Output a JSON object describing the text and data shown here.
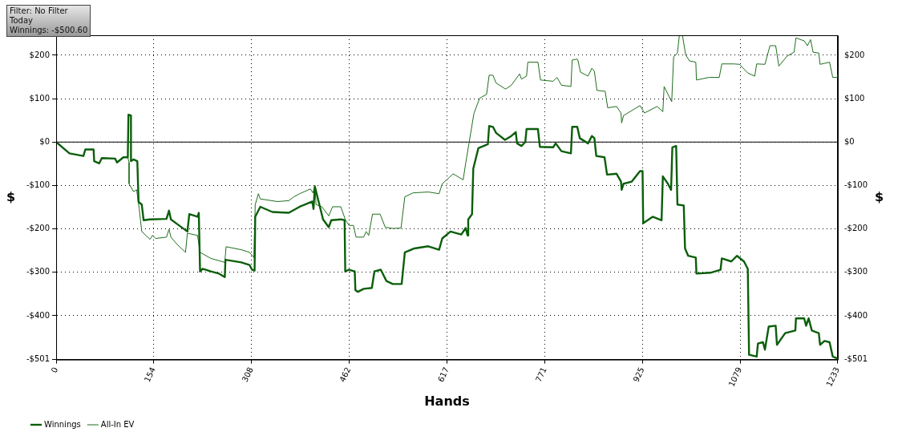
{
  "chart_data": {
    "type": "line",
    "xlabel": "Hands",
    "ylabel": "$",
    "y2label": "$",
    "annotations": [
      "Filter: No Filter",
      "Today",
      "Winnings: -$500.60"
    ],
    "xlim": [
      0,
      1233
    ],
    "xticks": [
      0,
      154,
      308,
      462,
      617,
      771,
      925,
      1079,
      1233
    ],
    "ylim": [
      -501,
      246
    ],
    "yticks": [
      {
        "value": -501,
        "label": "-$501"
      },
      {
        "value": -400,
        "label": "-$400"
      },
      {
        "value": -300,
        "label": "-$300"
      },
      {
        "value": -200,
        "label": "-$200"
      },
      {
        "value": -100,
        "label": "-$100"
      },
      {
        "value": 0,
        "label": "$0"
      },
      {
        "value": 100,
        "label": "$100"
      },
      {
        "value": 200,
        "label": "$200"
      }
    ],
    "y2lim": [
      -501,
      246
    ],
    "y2ticks": [
      {
        "value": -501,
        "label": "-$501"
      },
      {
        "value": -400,
        "label": "-$400"
      },
      {
        "value": -300,
        "label": "-$300"
      },
      {
        "value": -200,
        "label": "-$200"
      },
      {
        "value": -100,
        "label": "-$100"
      },
      {
        "value": 0,
        "label": "$0"
      },
      {
        "value": 100,
        "label": "$100"
      },
      {
        "value": 200,
        "label": "$200"
      }
    ],
    "grid": true,
    "legend": "bottom left",
    "marker": "none",
    "line_style": "solid",
    "ref_lines": [
      {
        "axis": "y",
        "value": 0,
        "color": "#000000"
      }
    ],
    "series": [
      {
        "name": "Winnings",
        "color": "#0b5e0b",
        "x": [
          0,
          21,
          43,
          46,
          59,
          60,
          68,
          72,
          93,
          96,
          106,
          113,
          114,
          118,
          118,
          122,
          128,
          130,
          135,
          138,
          148,
          174,
          178,
          181,
          191,
          207,
          210,
          223,
          225,
          227,
          231,
          244,
          257,
          266,
          267,
          292,
          305,
          309,
          313,
          314,
          322,
          341,
          367,
          384,
          404,
          406,
          408,
          421,
          430,
          434,
          449,
          455,
          456,
          462,
          471,
          472,
          476,
          485,
          498,
          502,
          512,
          521,
          531,
          545,
          550,
          565,
          587,
          604,
          609,
          622,
          639,
          646,
          649,
          650,
          656,
          658,
          666,
          681,
          683,
          689,
          694,
          708,
          718,
          725,
          727,
          734,
          740,
          742,
          760,
          763,
          784,
          788,
          797,
          812,
          814,
          822,
          826,
          839,
          845,
          849,
          852,
          865,
          869,
          884,
          891,
          892,
          895,
          908,
          921,
          925,
          926,
          941,
          955,
          957,
          965,
          970,
          972,
          978,
          980,
          990,
          992,
          997,
          1009,
          1010,
          1032,
          1048,
          1050,
          1065,
          1074,
          1085,
          1091,
          1093,
          1105,
          1107,
          1115,
          1118,
          1124,
          1135,
          1137,
          1150,
          1166,
          1167,
          1180,
          1183,
          1187,
          1192,
          1203,
          1205,
          1212,
          1220,
          1225,
          1232,
          1233
        ],
        "values": [
          0,
          -26,
          -32,
          -17,
          -17,
          -44,
          -49,
          -37,
          -38,
          -47,
          -35,
          -35,
          63,
          61,
          -44,
          -40,
          -44,
          -138,
          -144,
          -180,
          -178,
          -177,
          -158,
          -178,
          -189,
          -206,
          -166,
          -172,
          -163,
          -298,
          -292,
          -298,
          -303,
          -311,
          -271,
          -277,
          -283,
          -294,
          -296,
          -172,
          -149,
          -161,
          -163,
          -149,
          -137,
          -154,
          -102,
          -178,
          -196,
          -180,
          -178,
          -180,
          -298,
          -294,
          -298,
          -341,
          -345,
          -338,
          -336,
          -298,
          -294,
          -320,
          -327,
          -327,
          -254,
          -245,
          -240,
          -248,
          -222,
          -206,
          -213,
          -198,
          -215,
          -178,
          -166,
          -61,
          -14,
          -5,
          37,
          35,
          21,
          5,
          14,
          23,
          -3,
          -9,
          0,
          30,
          30,
          -11,
          -12,
          -3,
          -21,
          -26,
          35,
          35,
          9,
          -3,
          14,
          9,
          -32,
          -35,
          -75,
          -73,
          -91,
          -110,
          -96,
          -91,
          -67,
          -67,
          -187,
          -172,
          -180,
          -79,
          -96,
          -110,
          -12,
          -9,
          -144,
          -146,
          -245,
          -262,
          -266,
          -303,
          -301,
          -294,
          -268,
          -275,
          -262,
          -275,
          -292,
          -490,
          -494,
          -464,
          -461,
          -478,
          -425,
          -423,
          -467,
          -440,
          -434,
          -406,
          -406,
          -423,
          -406,
          -434,
          -440,
          -467,
          -458,
          -461,
          -494,
          -498,
          -501
        ]
      },
      {
        "name": "All-In EV",
        "color": "#1f6e1f",
        "x": [
          0,
          21,
          43,
          46,
          59,
          60,
          68,
          72,
          93,
          96,
          106,
          113,
          115,
          115,
          122,
          127,
          131,
          135,
          148,
          152,
          157,
          174,
          178,
          181,
          191,
          204,
          207,
          223,
          227,
          244,
          266,
          268,
          292,
          305,
          312,
          314,
          319,
          322,
          349,
          367,
          375,
          384,
          401,
          405,
          408,
          410,
          419,
          430,
          436,
          449,
          456,
          462,
          469,
          473,
          485,
          489,
          493,
          499,
          511,
          519,
          531,
          544,
          550,
          563,
          587,
          604,
          609,
          620,
          626,
          642,
          646,
          659,
          668,
          679,
          683,
          689,
          694,
          709,
          718,
          731,
          734,
          742,
          744,
          760,
          764,
          784,
          790,
          797,
          812,
          814,
          822,
          823,
          827,
          839,
          845,
          849,
          853,
          866,
          870,
          884,
          891,
          892,
          895,
          921,
          928,
          948,
          957,
          959,
          971,
          974,
          980,
          983,
          988,
          993,
          999,
          1009,
          1010,
          1030,
          1046,
          1050,
          1069,
          1078,
          1091,
          1102,
          1105,
          1118,
          1126,
          1135,
          1140,
          1153,
          1164,
          1167,
          1180,
          1185,
          1190,
          1194,
          1203,
          1205,
          1220,
          1225,
          1232,
          1233
        ],
        "values": [
          0,
          -26,
          -32,
          -17,
          -17,
          -44,
          -49,
          -37,
          -38,
          -47,
          -35,
          -35,
          -47,
          -96,
          -114,
          -110,
          -154,
          -206,
          -224,
          -215,
          -222,
          -219,
          -201,
          -219,
          -236,
          -254,
          -210,
          -215,
          -254,
          -268,
          -277,
          -241,
          -248,
          -254,
          -266,
          -144,
          -119,
          -131,
          -137,
          -135,
          -126,
          -119,
          -108,
          -117,
          -102,
          -144,
          -149,
          -170,
          -149,
          -149,
          -178,
          -192,
          -192,
          -219,
          -219,
          -206,
          -215,
          -166,
          -166,
          -196,
          -199,
          -198,
          -126,
          -117,
          -115,
          -119,
          -96,
          -82,
          -73,
          -87,
          -49,
          66,
          101,
          110,
          154,
          154,
          136,
          122,
          131,
          157,
          145,
          152,
          184,
          184,
          143,
          140,
          149,
          131,
          128,
          189,
          191,
          189,
          161,
          152,
          170,
          163,
          119,
          117,
          79,
          82,
          67,
          44,
          61,
          84,
          67,
          82,
          70,
          128,
          93,
          196,
          205,
          245,
          245,
          201,
          187,
          184,
          143,
          149,
          149,
          180,
          180,
          179,
          159,
          152,
          180,
          179,
          222,
          222,
          175,
          198,
          207,
          240,
          233,
          222,
          236,
          207,
          205,
          179,
          184,
          149,
          149,
          156
        ]
      }
    ]
  }
}
